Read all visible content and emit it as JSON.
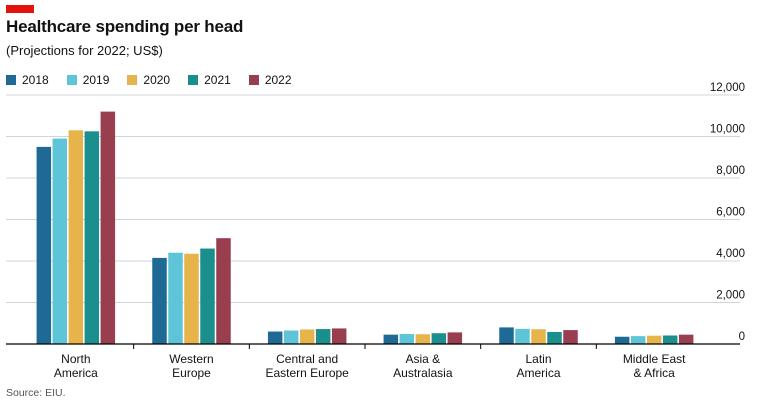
{
  "header": {
    "title": "Healthcare spending per head",
    "subtitle": "(Projections for 2022; US$)",
    "source": "Source: EIU."
  },
  "colors": {
    "brand": "#e3120b",
    "axis": "#000000",
    "grid": "#d0d5d9"
  },
  "chart_data": {
    "type": "bar",
    "title": "Healthcare spending per head",
    "subtitle": "(Projections for 2022; US$)",
    "xlabel": "",
    "ylabel": "",
    "categories": [
      [
        "North",
        "America"
      ],
      [
        "Western",
        "Europe"
      ],
      [
        "Central and",
        "Eastern Europe"
      ],
      [
        "Asia &",
        "Australasia"
      ],
      [
        "Latin",
        "America"
      ],
      [
        "Middle East",
        "& Africa"
      ]
    ],
    "series": [
      {
        "name": "2018",
        "color": "#1f6a95",
        "values": [
          9500,
          4150,
          600,
          450,
          800,
          350
        ]
      },
      {
        "name": "2019",
        "color": "#5ec5d8",
        "values": [
          9900,
          4400,
          650,
          480,
          730,
          380
        ]
      },
      {
        "name": "2020",
        "color": "#e7b34b",
        "values": [
          10300,
          4350,
          700,
          470,
          710,
          400
        ]
      },
      {
        "name": "2021",
        "color": "#1b8f8e",
        "values": [
          10250,
          4600,
          720,
          520,
          580,
          410
        ]
      },
      {
        "name": "2022",
        "color": "#993e4e",
        "values": [
          11200,
          5100,
          750,
          560,
          670,
          450
        ]
      }
    ],
    "ylim": [
      0,
      12000
    ],
    "yticks": [
      0,
      2000,
      4000,
      6000,
      8000,
      10000,
      12000
    ],
    "ytick_labels": [
      "0",
      "2,000",
      "4,000",
      "6,000",
      "8,000",
      "10,000",
      "12,000"
    ],
    "y_axis_side": "right",
    "grid": true,
    "legend_position": "top-left"
  }
}
